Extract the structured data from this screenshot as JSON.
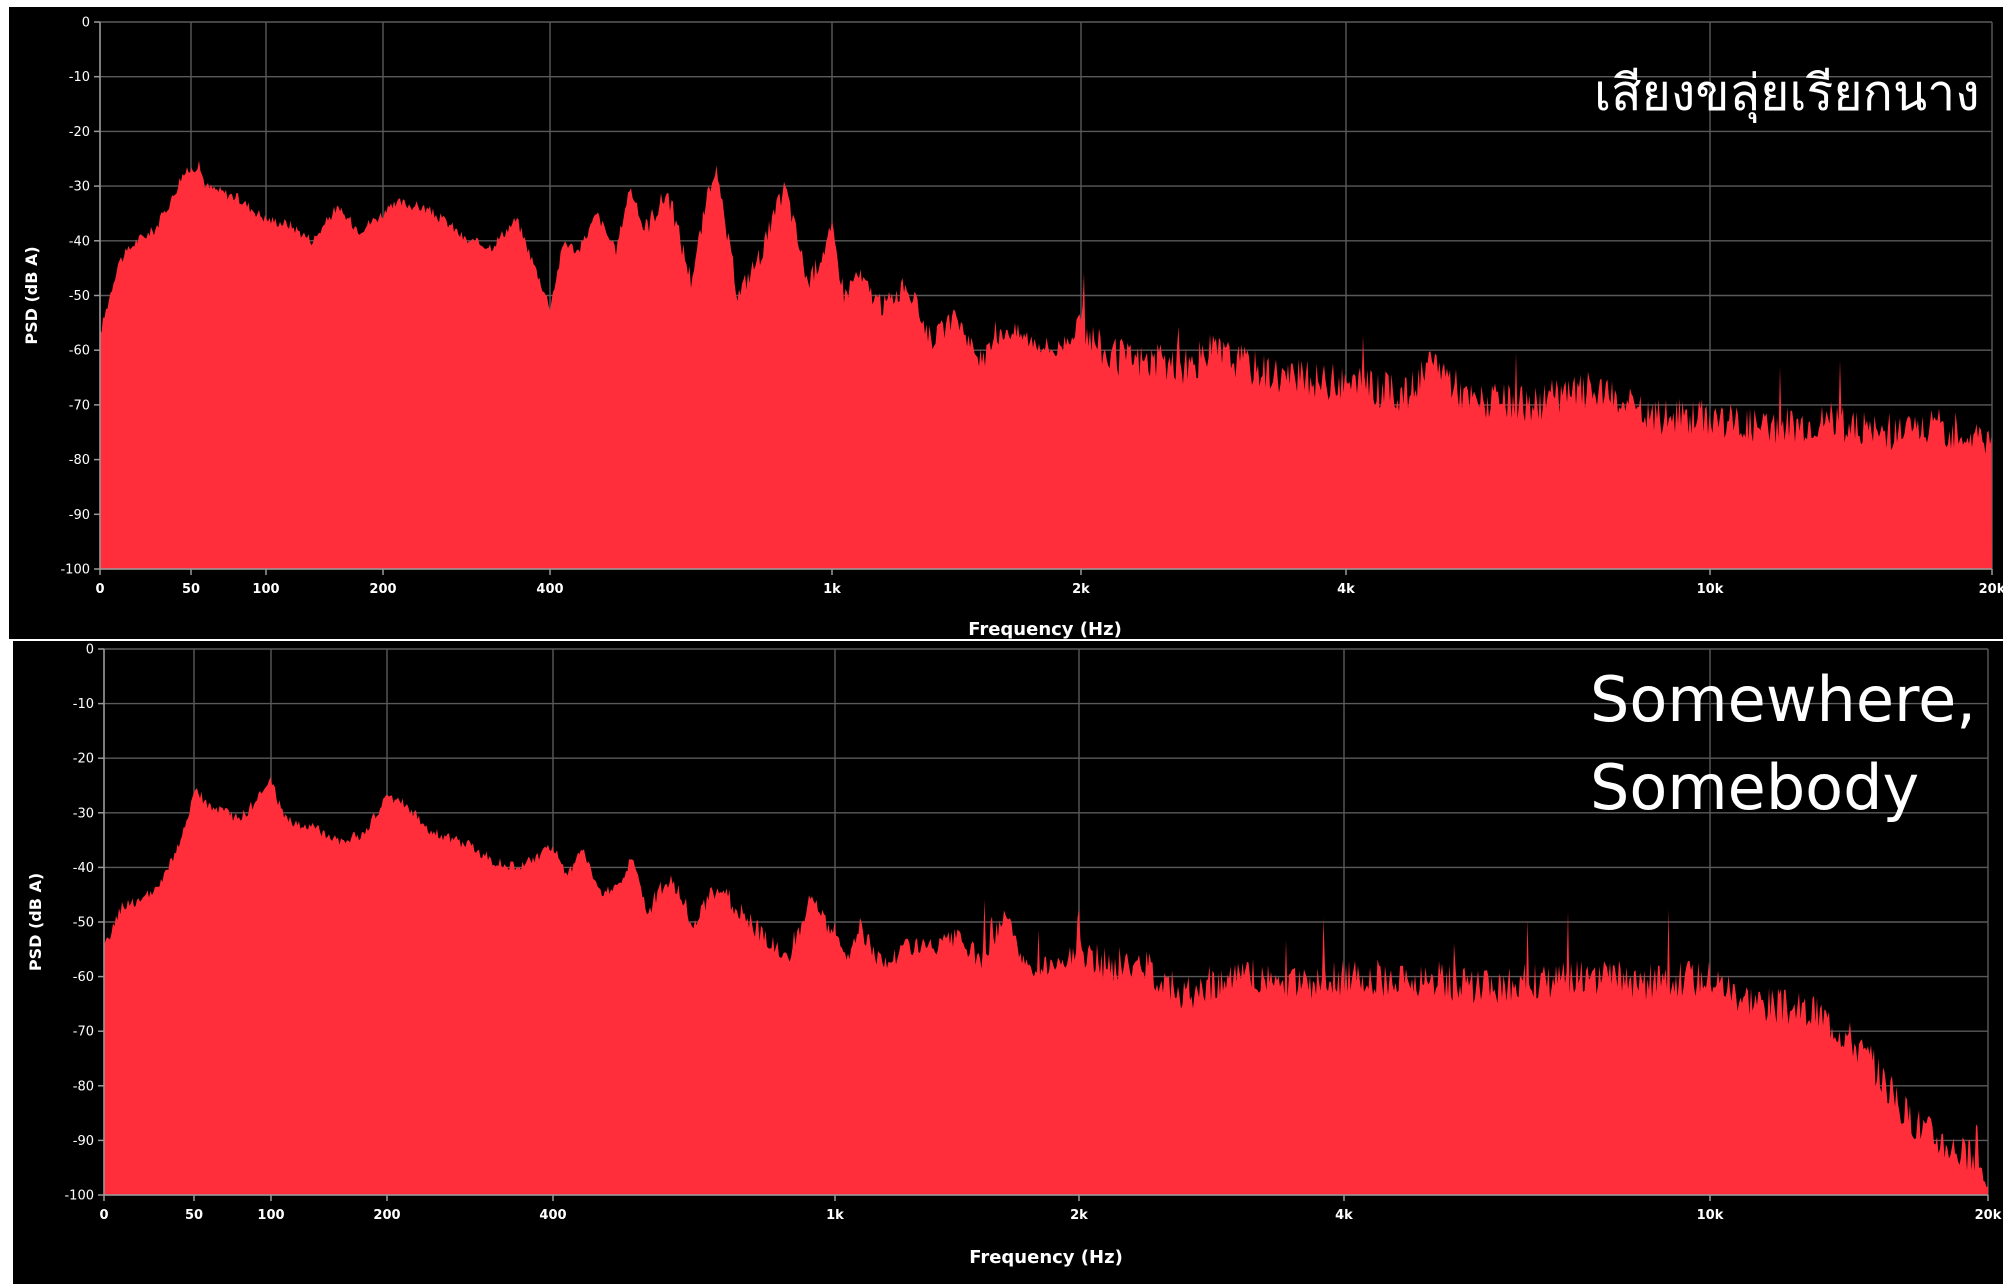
{
  "colors": {
    "background": "#000000",
    "fill": "#ff2e3a",
    "grid": "#5a5a5a",
    "text": "#ffffff"
  },
  "chart_data": [
    {
      "type": "area",
      "title": "เสียงขลุ่ยเรียกนาง",
      "xlabel": "Frequency (Hz)",
      "ylabel": "PSD (dB A)",
      "xscale": "log-like",
      "xlim": [
        0,
        20000
      ],
      "ylim": [
        -100,
        0
      ],
      "grid": true,
      "xticks": [
        "0",
        "50",
        "100",
        "200",
        "400",
        "1k",
        "2k",
        "4k",
        "10k",
        "20k"
      ],
      "yticks": [
        "0",
        "-10",
        "-20",
        "-30",
        "-40",
        "-50",
        "-60",
        "-70",
        "-80",
        "-90",
        "-100"
      ],
      "x": [
        0,
        10,
        20,
        30,
        40,
        45,
        50,
        55,
        60,
        70,
        80,
        100,
        120,
        140,
        160,
        180,
        200,
        220,
        250,
        280,
        300,
        330,
        360,
        400,
        430,
        460,
        500,
        540,
        570,
        600,
        650,
        700,
        750,
        800,
        850,
        900,
        950,
        1000,
        1050,
        1100,
        1200,
        1300,
        1400,
        1500,
        1600,
        1700,
        1800,
        1900,
        2000,
        2200,
        2500,
        2800,
        3000,
        3300,
        3600,
        4000,
        4500,
        5000,
        5500,
        6000,
        7000,
        8000,
        9000,
        10000,
        12000,
        14000,
        16000,
        18000,
        20000
      ],
      "values": [
        -57,
        -44,
        -40,
        -38,
        -32,
        -28,
        -27,
        -26,
        -30,
        -31,
        -32,
        -36,
        -37,
        -40,
        -34,
        -38,
        -35,
        -33,
        -34,
        -37,
        -40,
        -41,
        -36,
        -52,
        -40,
        -42,
        -35,
        -42,
        -30,
        -38,
        -31,
        -47,
        -26,
        -50,
        -42,
        -30,
        -48,
        -38,
        -50,
        -46,
        -52,
        -48,
        -58,
        -54,
        -62,
        -56,
        -58,
        -60,
        -55,
        -61,
        -62,
        -63,
        -60,
        -63,
        -65,
        -66,
        -67,
        -68,
        -62,
        -69,
        -70,
        -67,
        -72,
        -72,
        -74,
        -73,
        -75,
        -74,
        -76
      ]
    },
    {
      "type": "area",
      "title": "Somewhere, Somebody",
      "xlabel": "Frequency (Hz)",
      "ylabel": "PSD (dB A)",
      "xscale": "log-like",
      "xlim": [
        0,
        20000
      ],
      "ylim": [
        -100,
        0
      ],
      "grid": true,
      "xticks": [
        "0",
        "50",
        "100",
        "200",
        "400",
        "1k",
        "2k",
        "4k",
        "10k",
        "20k"
      ],
      "yticks": [
        "0",
        "-10",
        "-20",
        "-30",
        "-40",
        "-50",
        "-60",
        "-70",
        "-80",
        "-90",
        "-100"
      ],
      "x": [
        0,
        10,
        20,
        30,
        40,
        45,
        50,
        55,
        60,
        70,
        80,
        90,
        100,
        110,
        120,
        140,
        160,
        180,
        200,
        220,
        250,
        280,
        300,
        330,
        360,
        400,
        430,
        460,
        500,
        540,
        570,
        600,
        650,
        700,
        750,
        800,
        850,
        900,
        950,
        1000,
        1050,
        1100,
        1200,
        1300,
        1400,
        1500,
        1600,
        1700,
        1800,
        1900,
        2000,
        2200,
        2500,
        2800,
        3000,
        3300,
        3600,
        4000,
        4500,
        5000,
        5500,
        6000,
        7000,
        8000,
        9000,
        10000,
        11000,
        12000,
        13000,
        14000,
        15000,
        16000,
        17000,
        18000,
        19000,
        20000
      ],
      "values": [
        -55,
        -47,
        -46,
        -44,
        -37,
        -33,
        -26,
        -27,
        -29,
        -30,
        -31,
        -28,
        -24,
        -30,
        -32,
        -33,
        -35,
        -34,
        -27,
        -28,
        -33,
        -35,
        -36,
        -39,
        -40,
        -36,
        -42,
        -36,
        -45,
        -43,
        -38,
        -48,
        -42,
        -50,
        -44,
        -48,
        -53,
        -56,
        -46,
        -52,
        -56,
        -51,
        -58,
        -54,
        -55,
        -53,
        -57,
        -49,
        -60,
        -57,
        -56,
        -58,
        -58,
        -63,
        -61,
        -60,
        -61,
        -60,
        -60,
        -61,
        -60,
        -62,
        -61,
        -60,
        -61,
        -60,
        -63,
        -65,
        -66,
        -67,
        -71,
        -77,
        -85,
        -89,
        -92,
        -96
      ]
    }
  ]
}
